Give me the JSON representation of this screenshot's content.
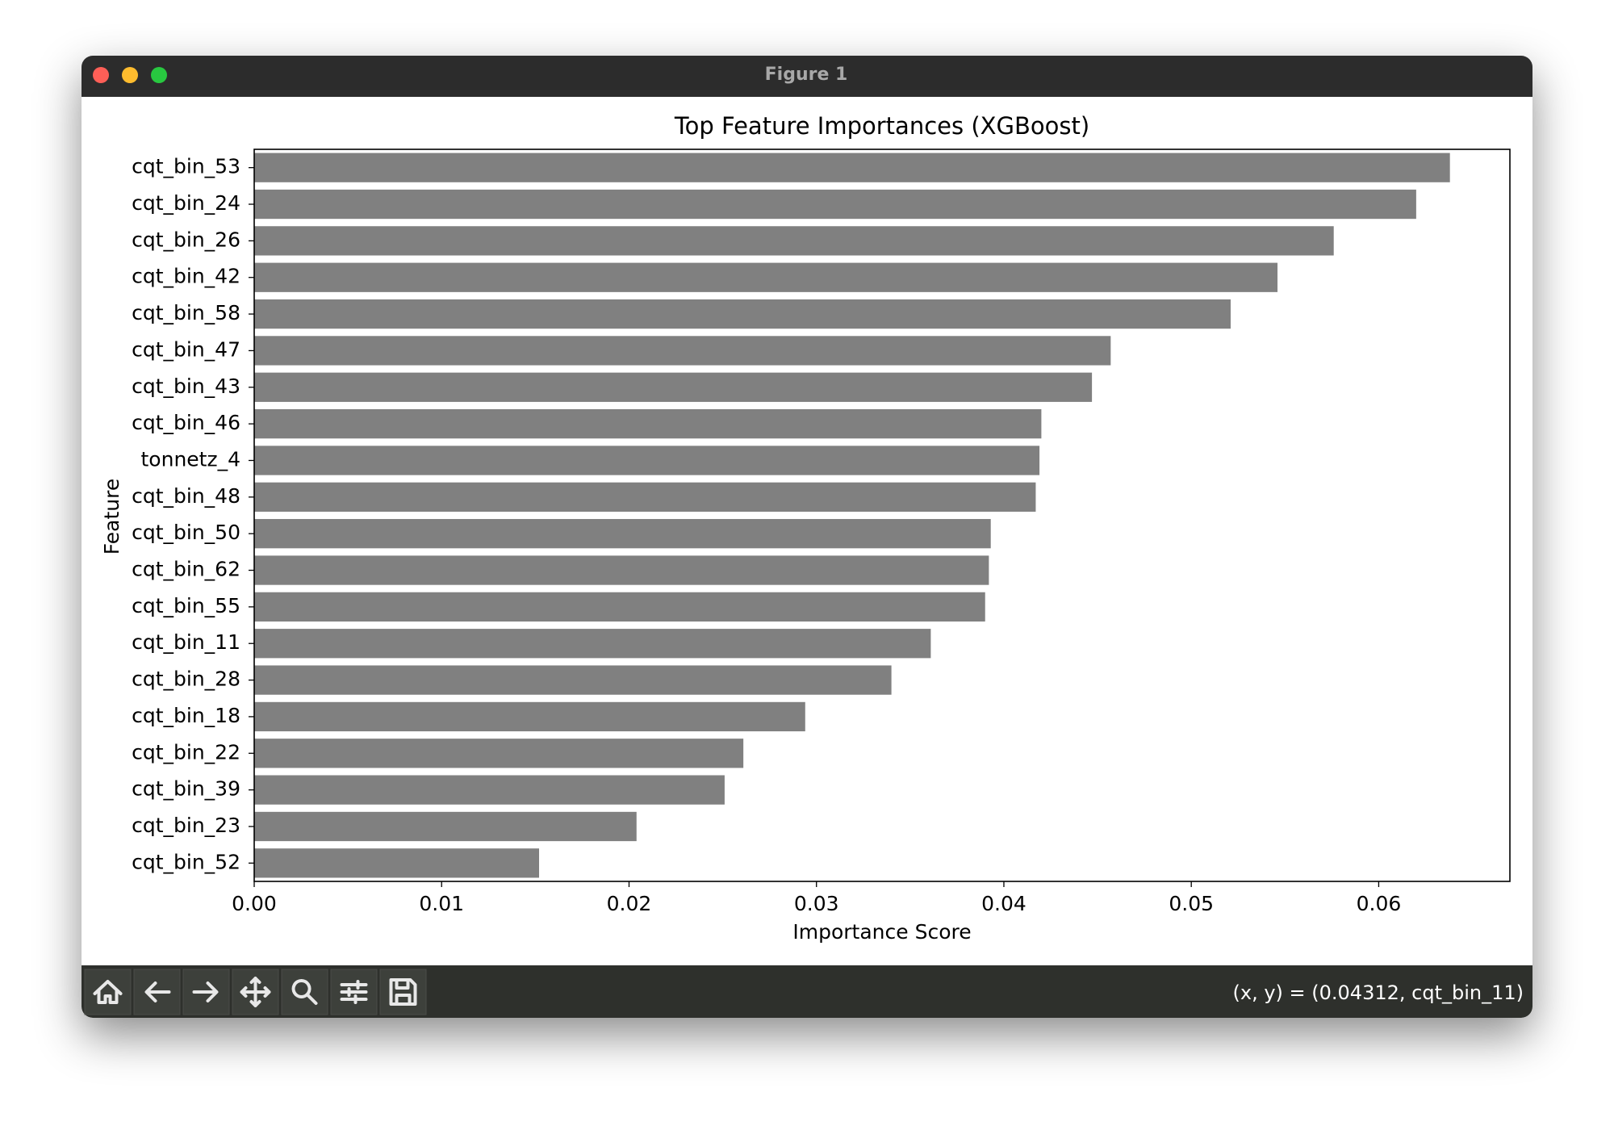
{
  "window": {
    "title": "Figure 1",
    "status": "(x, y) = (0.04312, cqt_bin_11)"
  },
  "chart_data": {
    "type": "barh",
    "title": "Top Feature Importances (XGBoost)",
    "x_label": "Importance Score",
    "y_label": "Feature",
    "categories": [
      "cqt_bin_53",
      "cqt_bin_24",
      "cqt_bin_26",
      "cqt_bin_42",
      "cqt_bin_58",
      "cqt_bin_47",
      "cqt_bin_43",
      "cqt_bin_46",
      "tonnetz_4",
      "cqt_bin_48",
      "cqt_bin_50",
      "cqt_bin_62",
      "cqt_bin_55",
      "cqt_bin_11",
      "cqt_bin_28",
      "cqt_bin_18",
      "cqt_bin_22",
      "cqt_bin_39",
      "cqt_bin_23",
      "cqt_bin_52"
    ],
    "values": [
      0.0638,
      0.062,
      0.0576,
      0.0546,
      0.0521,
      0.0457,
      0.0447,
      0.042,
      0.0419,
      0.0417,
      0.0393,
      0.0392,
      0.039,
      0.0361,
      0.034,
      0.0294,
      0.0261,
      0.0251,
      0.0204,
      0.0152
    ],
    "color": "#808080",
    "xlim": [
      0,
      0.067
    ],
    "xticks": [
      {
        "value": 0,
        "label": "0.00"
      },
      {
        "value": 0.01,
        "label": "0.01"
      },
      {
        "value": 0.02,
        "label": "0.02"
      },
      {
        "value": 0.03,
        "label": "0.03"
      },
      {
        "value": 0.04,
        "label": "0.04"
      },
      {
        "value": 0.05,
        "label": "0.05"
      },
      {
        "value": 0.06,
        "label": "0.06"
      }
    ],
    "grid": false
  }
}
